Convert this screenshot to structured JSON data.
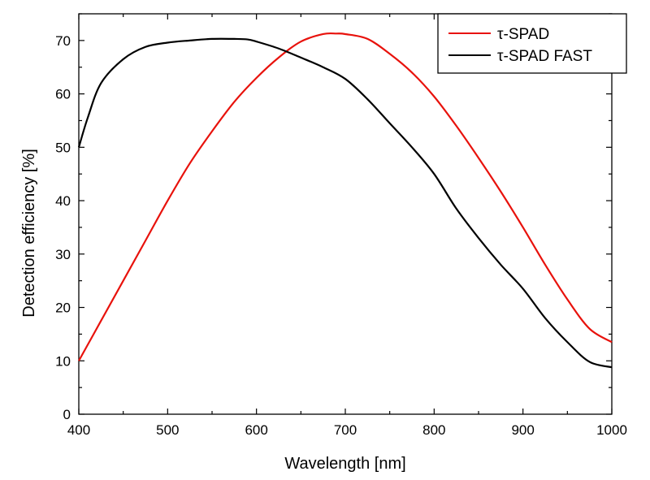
{
  "chart_data": {
    "type": "line",
    "xlabel": "Wavelength [nm]",
    "ylabel": "Detection efficiency [%]",
    "xlim": [
      400,
      1000
    ],
    "ylim": [
      0,
      75
    ],
    "xticks": [
      "400",
      "500",
      "600",
      "700",
      "800",
      "900",
      "1000"
    ],
    "yticks": [
      "0",
      "10",
      "20",
      "30",
      "40",
      "50",
      "60",
      "70"
    ],
    "grid": false,
    "legend_position": "top-right",
    "series": [
      {
        "name": "τ-SPAD",
        "color": "#e8120c",
        "x": [
          400,
          425,
          450,
          475,
          500,
          525,
          550,
          575,
          600,
          625,
          650,
          675,
          690,
          700,
          725,
          750,
          775,
          800,
          825,
          850,
          875,
          900,
          925,
          950,
          975,
          1000
        ],
        "y": [
          10,
          17.5,
          25,
          32.5,
          40,
          47,
          53,
          58.5,
          63,
          66.8,
          69.8,
          71.2,
          71.3,
          71.2,
          70.3,
          67.5,
          64,
          59.5,
          54,
          48,
          41.7,
          35,
          28,
          21.5,
          16,
          13.5
        ]
      },
      {
        "name": "τ-SPAD FAST",
        "color": "#000000",
        "x": [
          400,
          410,
          425,
          450,
          475,
          500,
          525,
          550,
          575,
          590,
          600,
          625,
          650,
          675,
          700,
          725,
          750,
          775,
          800,
          825,
          850,
          875,
          900,
          925,
          950,
          975,
          1000
        ],
        "y": [
          50,
          55.5,
          62,
          66.5,
          68.8,
          69.6,
          70,
          70.3,
          70.3,
          70.2,
          69.8,
          68.5,
          66.8,
          65,
          62.8,
          59,
          54.5,
          50,
          45,
          38.5,
          33,
          28,
          23.5,
          18,
          13.5,
          9.8,
          8.8
        ]
      }
    ]
  }
}
